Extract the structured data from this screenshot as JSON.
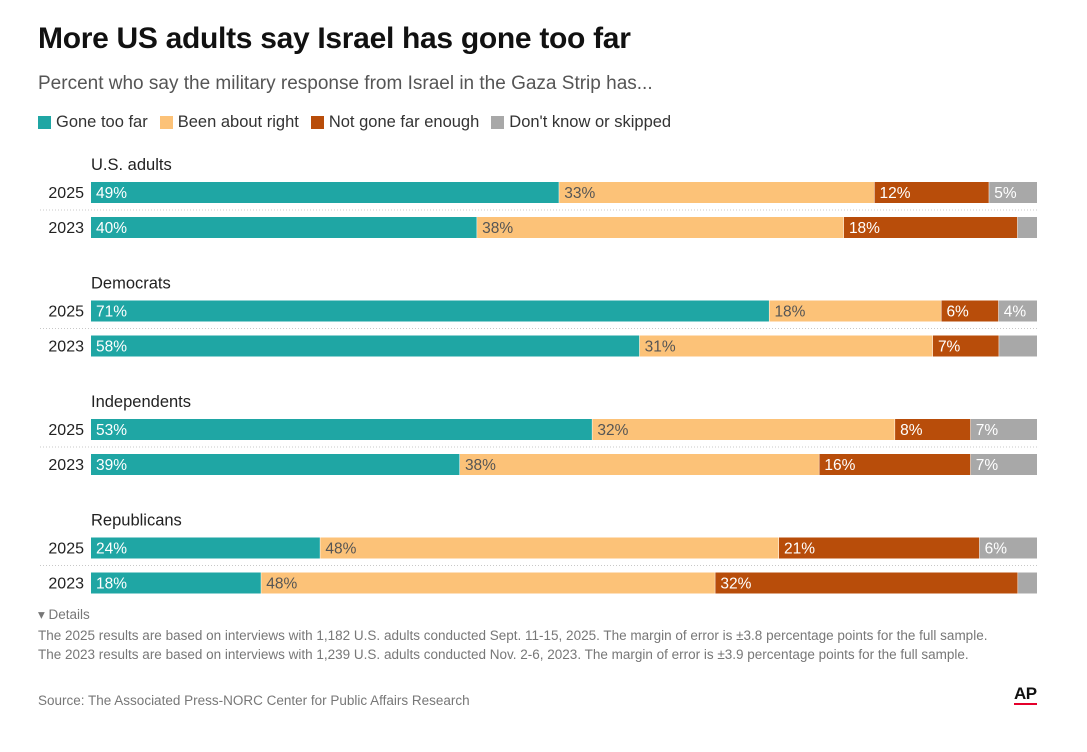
{
  "header": {
    "title": "More US adults say Israel has gone too far",
    "subtitle": "Percent who say the military response from Israel in the Gaza Strip has..."
  },
  "legend": {
    "items": [
      {
        "label": "Gone too far",
        "color": "#1fa6a4"
      },
      {
        "label": "Been about right",
        "color": "#fcc278"
      },
      {
        "label": "Not gone far enough",
        "color": "#b84d0a"
      },
      {
        "label": "Don't know or skipped",
        "color": "#a8a8a8"
      }
    ]
  },
  "chart_data": {
    "type": "bar",
    "orientation": "horizontal",
    "stacked": "100%",
    "title": "More US adults say Israel has gone too far",
    "subtitle": "Percent who say the military response from Israel in the Gaza Strip has...",
    "legend_position": "top-left",
    "grid": false,
    "series": [
      {
        "name": "Gone too far",
        "color": "#1fa6a4"
      },
      {
        "name": "Been about right",
        "color": "#fcc278"
      },
      {
        "name": "Not gone far enough",
        "color": "#b84d0a"
      },
      {
        "name": "Don't know or skipped",
        "color": "#a8a8a8"
      }
    ],
    "groups": [
      {
        "name": "U.S. adults",
        "rows": [
          {
            "year": "2025",
            "values": [
              49,
              33,
              12,
              5
            ],
            "labels": [
              "49%",
              "33%",
              "12%",
              "5%"
            ]
          },
          {
            "year": "2023",
            "values": [
              40,
              38,
              18,
              2
            ],
            "labels": [
              "40%",
              "38%",
              "18%",
              ""
            ]
          }
        ]
      },
      {
        "name": "Democrats",
        "rows": [
          {
            "year": "2025",
            "values": [
              71,
              18,
              6,
              4
            ],
            "labels": [
              "71%",
              "18%",
              "6%",
              "4%"
            ]
          },
          {
            "year": "2023",
            "values": [
              58,
              31,
              7,
              4
            ],
            "labels": [
              "58%",
              "31%",
              "7%",
              ""
            ]
          }
        ]
      },
      {
        "name": "Independents",
        "rows": [
          {
            "year": "2025",
            "values": [
              53,
              32,
              8,
              7
            ],
            "labels": [
              "53%",
              "32%",
              "8%",
              "7%"
            ]
          },
          {
            "year": "2023",
            "values": [
              39,
              38,
              16,
              7
            ],
            "labels": [
              "39%",
              "38%",
              "16%",
              "7%"
            ]
          }
        ]
      },
      {
        "name": "Republicans",
        "rows": [
          {
            "year": "2025",
            "values": [
              24,
              48,
              21,
              6
            ],
            "labels": [
              "24%",
              "48%",
              "21%",
              "6%"
            ]
          },
          {
            "year": "2023",
            "values": [
              18,
              48,
              32,
              2
            ],
            "labels": [
              "18%",
              "48%",
              "32%",
              ""
            ]
          }
        ]
      }
    ]
  },
  "footer": {
    "details_label": "▾ Details",
    "note": "The 2025 results are based on interviews with 1,182 U.S. adults conducted Sept. 11-15, 2025. The margin of error is ±3.8 percentage points for the full sample. The 2023 results are based on interviews with 1,239 U.S. adults conducted Nov. 2-6, 2023. The margin of error is ±3.9 percentage points for the full sample.",
    "source": "Source: The Associated Press-NORC Center for Public Affairs Research",
    "logo": "AP"
  }
}
